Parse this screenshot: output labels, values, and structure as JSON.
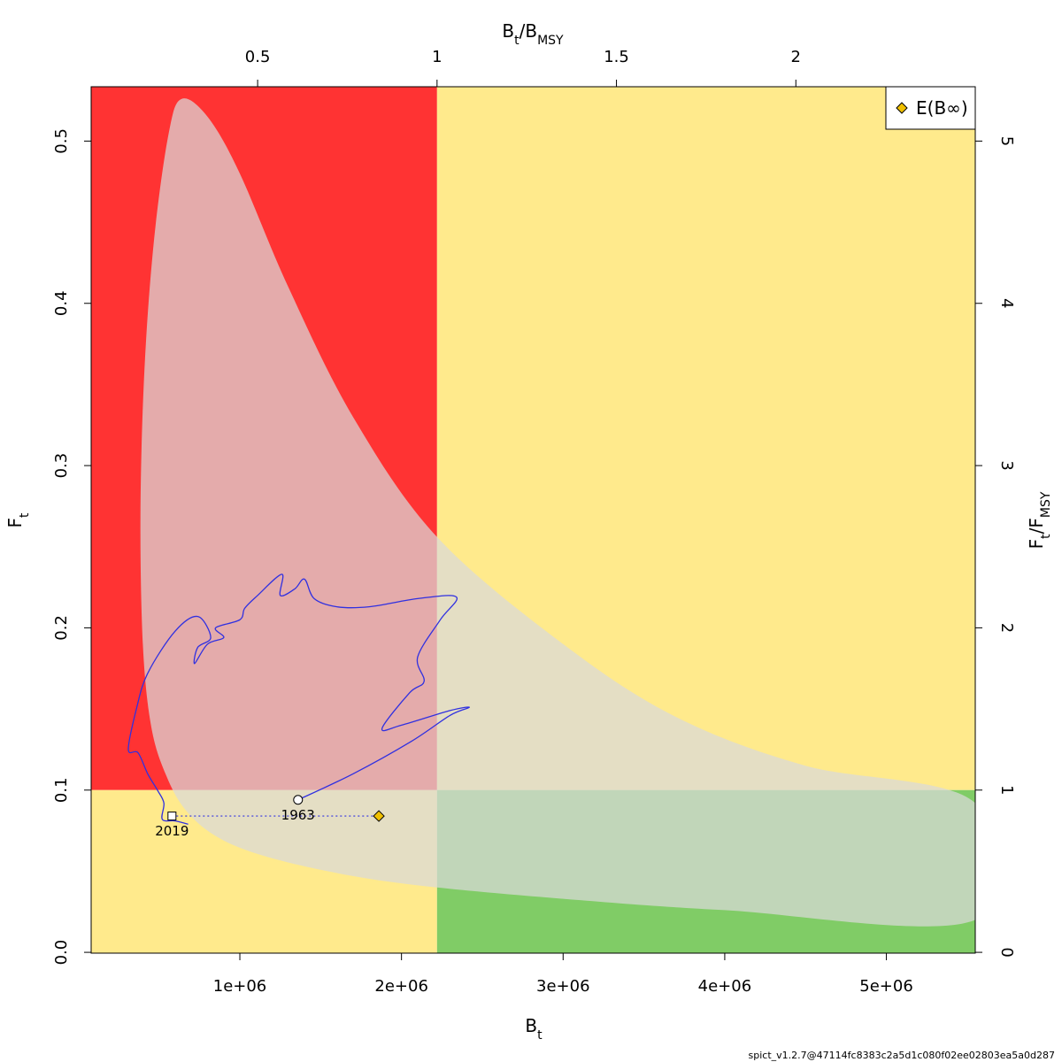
{
  "chart_data": {
    "type": "scatter",
    "subtype": "kobe-phase-plot",
    "title": "",
    "xlabel": "B_t",
    "ylabel": "F_t",
    "x_top_label": "B_t/B_MSY",
    "y_right_label": "F_t/F_MSY",
    "xlim": [
      80000,
      5550000
    ],
    "ylim": [
      -0.0005,
      0.5335
    ],
    "reference_points": {
      "Bmsy": 2220000,
      "Fmsy": 0.1
    },
    "x_ticks": [
      {
        "value": 1000000,
        "label": "1e+06"
      },
      {
        "value": 2000000,
        "label": "2e+06"
      },
      {
        "value": 3000000,
        "label": "3e+06"
      },
      {
        "value": 4000000,
        "label": "4e+06"
      },
      {
        "value": 5000000,
        "label": "5e+06"
      }
    ],
    "y_ticks": [
      {
        "value": 0.0,
        "label": "0.0"
      },
      {
        "value": 0.1,
        "label": "0.1"
      },
      {
        "value": 0.2,
        "label": "0.2"
      },
      {
        "value": 0.3,
        "label": "0.3"
      },
      {
        "value": 0.4,
        "label": "0.4"
      },
      {
        "value": 0.5,
        "label": "0.5"
      }
    ],
    "x_top_ticks": [
      {
        "value": 0.5,
        "label": "0.5"
      },
      {
        "value": 1,
        "label": "1"
      },
      {
        "value": 1.5,
        "label": "1.5"
      },
      {
        "value": 2,
        "label": "2"
      }
    ],
    "y_right_ticks": [
      {
        "value": 0,
        "label": "0"
      },
      {
        "value": 1,
        "label": "1"
      },
      {
        "value": 2,
        "label": "2"
      },
      {
        "value": 3,
        "label": "3"
      },
      {
        "value": 4,
        "label": "4"
      },
      {
        "value": 5,
        "label": "5"
      }
    ],
    "zone_colors": {
      "overfished_overfishing": "#ff3333",
      "caution": "#ffea8c",
      "healthy": "#80cc66",
      "confidence_region": "#d9d9d9",
      "trajectory": "#3030e0",
      "equilibrium_point": "#f0c000"
    },
    "confidence_region": [
      [
        640000,
        0.526
      ],
      [
        560000,
        0.505
      ],
      [
        470000,
        0.44
      ],
      [
        410000,
        0.36
      ],
      [
        385000,
        0.27
      ],
      [
        400000,
        0.19
      ],
      [
        450000,
        0.14
      ],
      [
        540000,
        0.11
      ],
      [
        670000,
        0.087
      ],
      [
        880000,
        0.07
      ],
      [
        1200000,
        0.058
      ],
      [
        1700000,
        0.047
      ],
      [
        2220000,
        0.04
      ],
      [
        3000000,
        0.033
      ],
      [
        4000000,
        0.026
      ],
      [
        5550000,
        0.02
      ],
      [
        5550000,
        0.092
      ],
      [
        4500000,
        0.115
      ],
      [
        3700000,
        0.145
      ],
      [
        3000000,
        0.19
      ],
      [
        2220000,
        0.256
      ],
      [
        1700000,
        0.33
      ],
      [
        1300000,
        0.41
      ],
      [
        1000000,
        0.48
      ],
      [
        800000,
        0.515
      ]
    ],
    "trajectory": [
      [
        1360000,
        0.094
      ],
      [
        1700000,
        0.11
      ],
      [
        2060000,
        0.13
      ],
      [
        2300000,
        0.146
      ],
      [
        2420000,
        0.151
      ],
      [
        2300000,
        0.149
      ],
      [
        2000000,
        0.14
      ],
      [
        1880000,
        0.138
      ],
      [
        2050000,
        0.16
      ],
      [
        2140000,
        0.167
      ],
      [
        2100000,
        0.182
      ],
      [
        2240000,
        0.205
      ],
      [
        2340000,
        0.219
      ],
      [
        2100000,
        0.218
      ],
      [
        1800000,
        0.213
      ],
      [
        1600000,
        0.213
      ],
      [
        1460000,
        0.218
      ],
      [
        1400000,
        0.23
      ],
      [
        1340000,
        0.224
      ],
      [
        1250000,
        0.22
      ],
      [
        1260000,
        0.233
      ],
      [
        1110000,
        0.22
      ],
      [
        1030000,
        0.212
      ],
      [
        1000000,
        0.205
      ],
      [
        850000,
        0.2
      ],
      [
        900000,
        0.194
      ],
      [
        800000,
        0.19
      ],
      [
        720000,
        0.178
      ],
      [
        740000,
        0.188
      ],
      [
        820000,
        0.194
      ],
      [
        740000,
        0.207
      ],
      [
        600000,
        0.198
      ],
      [
        430000,
        0.172
      ],
      [
        360000,
        0.15
      ],
      [
        310000,
        0.125
      ],
      [
        370000,
        0.123
      ],
      [
        430000,
        0.11
      ],
      [
        490000,
        0.1
      ],
      [
        530000,
        0.092
      ],
      [
        520000,
        0.082
      ],
      [
        600000,
        0.081
      ],
      [
        680000,
        0.079
      ]
    ],
    "points": [
      {
        "label": "1963",
        "B": 1360000,
        "F": 0.094,
        "marker": "circle"
      },
      {
        "label": "2019",
        "B": 580000,
        "F": 0.084,
        "marker": "square"
      }
    ],
    "equilibrium": {
      "B": 1860000,
      "F": 0.084
    },
    "legend": {
      "position": "top-right",
      "entry": "E(B∞)"
    },
    "footer": "spict_v1.2.7@47114fc8383c2a5d1c080f02ee02803ea5a0d287"
  }
}
